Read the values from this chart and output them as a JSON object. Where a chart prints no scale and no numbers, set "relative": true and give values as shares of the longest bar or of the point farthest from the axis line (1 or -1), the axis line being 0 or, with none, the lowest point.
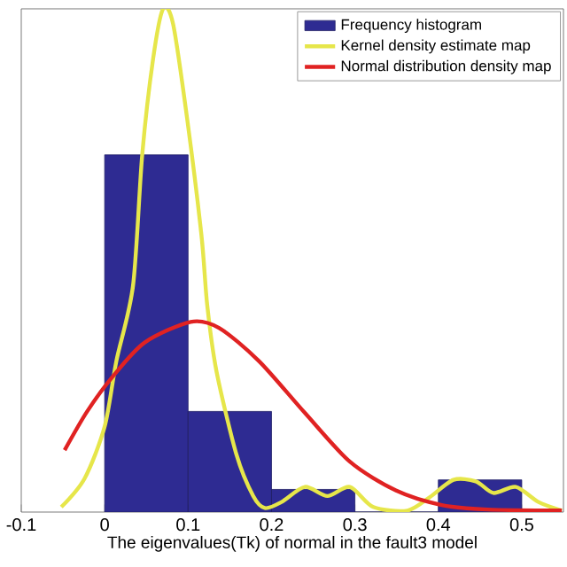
{
  "chart_data": {
    "type": "histogram",
    "relative": true,
    "xlabel": "The eigenvalues(Tk) of normal in the fault3 model",
    "xlim": [
      -0.1,
      0.55
    ],
    "xticks": [
      -0.1,
      0,
      0.1,
      0.2,
      0.3,
      0.4,
      0.5
    ],
    "legend": "top right",
    "series": [
      {
        "name": "Frequency histogram",
        "color": "#2e2b92",
        "bins": [
          0,
          0.1,
          0.2,
          0.3,
          0.4,
          0.5
        ],
        "values": [
          0.71,
          0.2,
          0.045,
          0,
          0.064
        ]
      },
      {
        "type": "line",
        "name": "Kernel density estimate map",
        "color": "#e6e64a",
        "x": [
          -0.052,
          -0.024,
          0,
          0.014,
          0.034,
          0.045,
          0.058,
          0.07,
          0.082,
          0.099,
          0.116,
          0.123,
          0.134,
          0.158,
          0.178,
          0.192,
          0.212,
          0.24,
          0.267,
          0.294,
          0.322,
          0.363,
          0.39,
          0.418,
          0.445,
          0.466,
          0.493,
          0.52,
          0.548
        ],
        "values": [
          0.01,
          0.067,
          0.17,
          0.3,
          0.45,
          0.71,
          0.9,
          1.0,
          0.97,
          0.78,
          0.55,
          0.41,
          0.28,
          0.114,
          0.032,
          0.008,
          0.02,
          0.05,
          0.032,
          0.05,
          0.01,
          0.003,
          0.03,
          0.064,
          0.061,
          0.038,
          0.05,
          0.02,
          0.003
        ]
      },
      {
        "type": "line",
        "name": "Normal distribution density map",
        "color": "#e02222",
        "x": [
          -0.048,
          -0.021,
          0.01,
          0.048,
          0.103,
          0.137,
          0.185,
          0.24,
          0.294,
          0.349,
          0.404,
          0.459,
          0.548
        ],
        "values": [
          0.123,
          0.2,
          0.27,
          0.337,
          0.378,
          0.366,
          0.3,
          0.197,
          0.1,
          0.043,
          0.014,
          0.005,
          0.003
        ]
      }
    ]
  }
}
